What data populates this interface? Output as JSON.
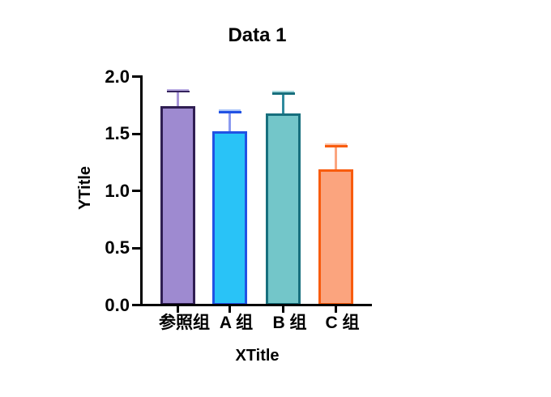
{
  "chart_data": {
    "type": "bar",
    "title": "Data 1",
    "xlabel": "XTitle",
    "ylabel": "YTitle",
    "categories": [
      "参照组",
      "A 组",
      "B 组",
      "C 组"
    ],
    "values": [
      1.74,
      1.52,
      1.68,
      1.19
    ],
    "errors_plus": [
      0.13,
      0.17,
      0.17,
      0.2
    ],
    "ylim": [
      0,
      2
    ],
    "ytick_labels": [
      "0.0",
      "0.5",
      "1.0",
      "1.5",
      "2.0"
    ],
    "grid": false,
    "legend": "none",
    "background": "#ffffff",
    "axis_color": "#000000",
    "text_color": "#000000",
    "series_colors": [
      {
        "name": "参照组",
        "fill": "#9e8ad0",
        "border": "#2f1e52",
        "err_stem": "#a795d8",
        "err_cap": "#35235c",
        "err_cap_highlight": "#b7a9e0"
      },
      {
        "name": "A 组",
        "fill": "#29c3f7",
        "border": "#2152e4",
        "err_stem": "#8b9af0",
        "err_cap": "#2152e4",
        "err_cap_highlight": "#a9c4f8"
      },
      {
        "name": "B 组",
        "fill": "#73c6c9",
        "border": "#176f7d",
        "err_stem": "#2f8a9d",
        "err_cap": "#176f7d",
        "err_cap_highlight": "#a8d8dc"
      },
      {
        "name": "C 组",
        "fill": "#fba47e",
        "border": "#f85c0e",
        "err_stem": "#fba57f",
        "err_cap": "#f85c0e",
        "err_cap_highlight": "#fcc2a8"
      }
    ]
  }
}
